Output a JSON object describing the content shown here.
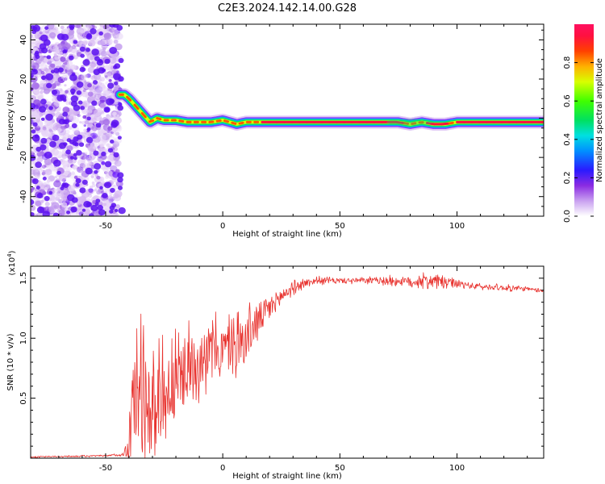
{
  "title": "C2E3.2024.142.14.00.G28",
  "chart_data": [
    {
      "type": "heatmap",
      "xlabel": "Height of straight line (km)",
      "ylabel": "Frequency (Hz)",
      "xlim": [
        -82,
        137
      ],
      "ylim": [
        -50,
        48
      ],
      "xticks": [
        -50,
        0,
        50,
        100
      ],
      "yticks": [
        -40,
        -20,
        0,
        20,
        40
      ],
      "colorbar": {
        "label": "Normalized spectral amplitude",
        "range": [
          0,
          1
        ],
        "ticks": [
          "0.0",
          "0.2",
          "0.4",
          "0.6",
          "0.8"
        ],
        "tick_values": [
          0.0,
          0.2,
          0.4,
          0.6,
          0.8
        ]
      },
      "ridge": {
        "x": [
          -44,
          -42,
          -40,
          -37,
          -34,
          -31,
          -28,
          -25,
          -20,
          -15,
          -10,
          -5,
          0,
          3,
          6,
          10,
          20,
          40,
          60,
          75,
          80,
          85,
          90,
          95,
          100,
          120,
          137
        ],
        "y": [
          12,
          12,
          10,
          6,
          2,
          -2,
          0,
          -1,
          -1,
          -2,
          -2,
          -2,
          -1,
          -2,
          -3,
          -2,
          -2,
          -2,
          -2,
          -2,
          -3,
          -2,
          -3,
          -3,
          -2,
          -2,
          -2
        ]
      },
      "noise_region_x": [
        -82,
        -44
      ]
    },
    {
      "type": "line",
      "xlabel": "Height of straight line (km)",
      "ylabel": "SNR (10 * v/v)",
      "y_multiplier": "(x10",
      "y_multiplier_exp": "4",
      "y_multiplier_close": ")",
      "xlim": [
        -82,
        137
      ],
      "ylim": [
        0,
        1.6
      ],
      "xticks": [
        -50,
        0,
        50,
        100
      ],
      "yticks": [
        0.5,
        1.0,
        1.5
      ],
      "ytick_labels": [
        "0.5",
        "1.0",
        "1.5"
      ],
      "color": "#e8322e",
      "envelope": {
        "x": [
          -82,
          -50,
          -43,
          -41,
          -39,
          -37,
          -35,
          -30,
          -25,
          -20,
          -15,
          -10,
          -5,
          0,
          5,
          10,
          15,
          20,
          25,
          30,
          35,
          40,
          50,
          60,
          70,
          80,
          90,
          100,
          110,
          120,
          130,
          137
        ],
        "base": [
          0.01,
          0.02,
          0.03,
          0.06,
          0.3,
          0.55,
          0.5,
          0.45,
          0.55,
          0.6,
          0.75,
          0.85,
          0.9,
          0.9,
          0.95,
          1.0,
          1.15,
          1.25,
          1.35,
          1.42,
          1.46,
          1.48,
          1.48,
          1.48,
          1.48,
          1.47,
          1.48,
          1.45,
          1.43,
          1.42,
          1.41,
          1.39
        ],
        "noise": [
          0.004,
          0.006,
          0.01,
          0.05,
          0.35,
          0.45,
          0.45,
          0.45,
          0.3,
          0.3,
          0.25,
          0.25,
          0.2,
          0.2,
          0.2,
          0.18,
          0.14,
          0.1,
          0.06,
          0.04,
          0.03,
          0.025,
          0.02,
          0.02,
          0.03,
          0.04,
          0.05,
          0.03,
          0.02,
          0.02,
          0.015,
          0.015
        ]
      }
    }
  ]
}
